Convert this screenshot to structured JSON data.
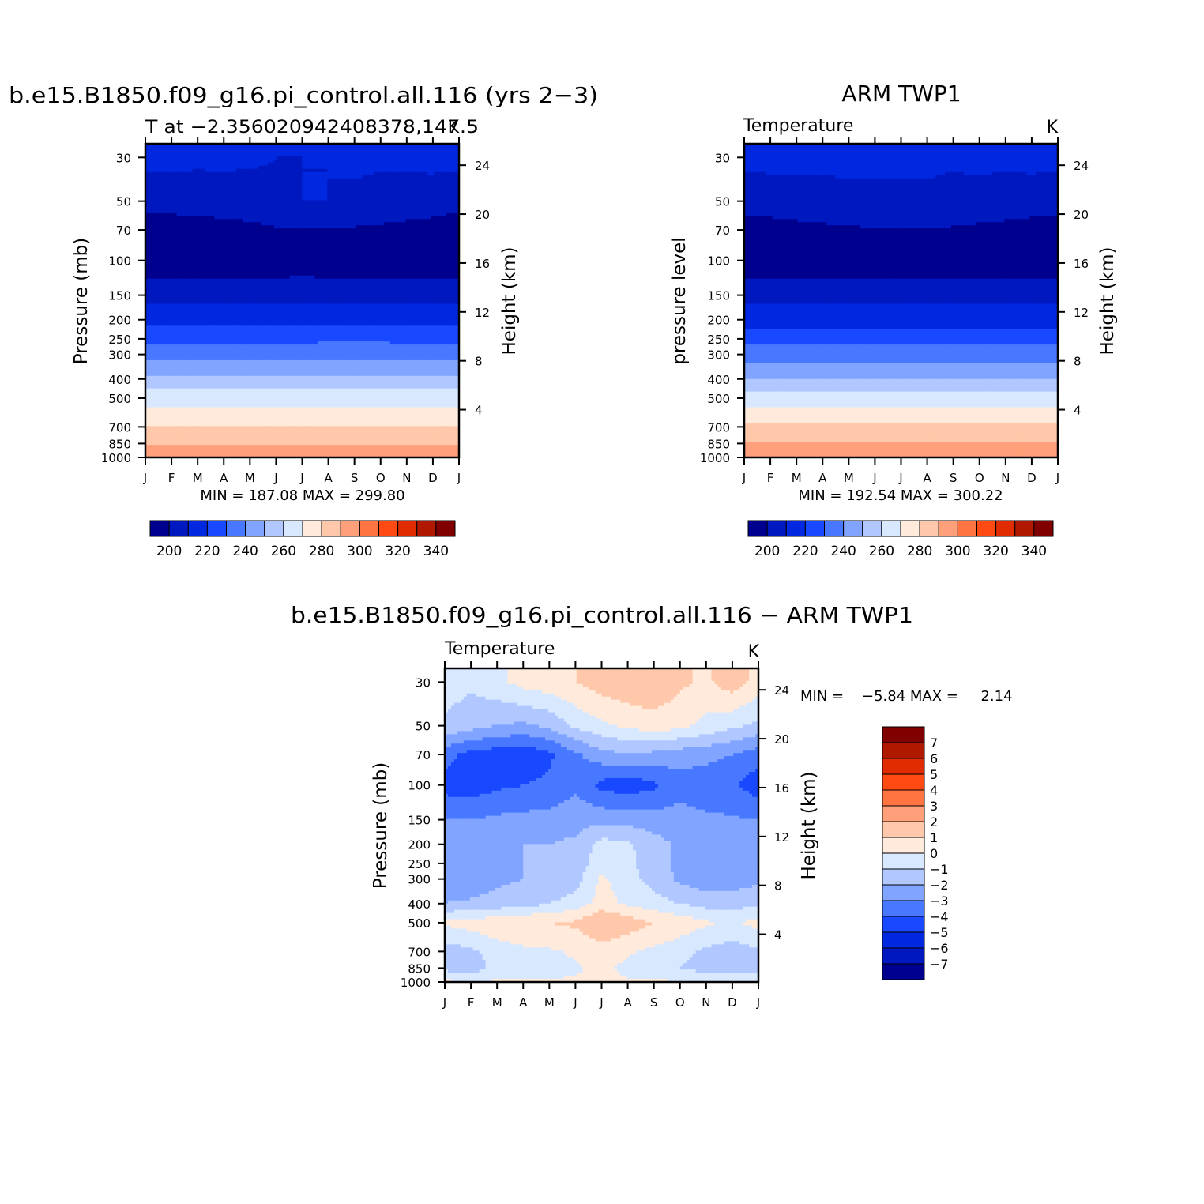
{
  "colors": {
    "temp_palette": [
      "#00008f",
      "#0018c0",
      "#0028e0",
      "#1848ff",
      "#4878ff",
      "#80a4ff",
      "#b0c8ff",
      "#d8e8ff",
      "#ffeadc",
      "#ffc8aa",
      "#ffa07a",
      "#ff7440",
      "#ff4a14",
      "#e02c00",
      "#b01800",
      "#800000"
    ],
    "diff_palette": [
      "#00008f",
      "#0018c0",
      "#0028e0",
      "#1848ff",
      "#4878ff",
      "#80a4ff",
      "#b0c8ff",
      "#d8e8ff",
      "#ffeadc",
      "#ffc8aa",
      "#ffa07a",
      "#ff7440",
      "#ff4a14",
      "#e02c00",
      "#b01800",
      "#800000"
    ]
  },
  "chart_data": [
    {
      "type": "heatmap",
      "title": "b.e15.B1850.f09_g16.pi_control.all.116 (yrs 2−3)",
      "subtitle_left": "T at −2.356020942408378,147.5",
      "subtitle_right": "K",
      "ylabel": "Pressure (mb)",
      "ylabel_right": "Height (km)",
      "x_ticks": [
        "J",
        "F",
        "M",
        "A",
        "M",
        "J",
        "J",
        "A",
        "S",
        "O",
        "N",
        "D",
        "J"
      ],
      "y_ticks": [
        "30",
        "50",
        "70",
        "100",
        "150",
        "200",
        "250",
        "300",
        "400",
        "500",
        "700",
        "850",
        "1000"
      ],
      "y_right_ticks": [
        "24",
        "20",
        "16",
        "12",
        "8",
        "4"
      ],
      "min_max": "MIN = 187.08 MAX = 299.80",
      "colorbar_labels": [
        "200",
        "220",
        "240",
        "260",
        "280",
        "300",
        "320",
        "340"
      ],
      "levels": [
        200,
        210,
        220,
        230,
        240,
        250,
        260,
        270,
        280,
        290,
        300,
        310,
        320,
        330,
        340
      ],
      "pressure_levels": [
        30,
        50,
        70,
        100,
        150,
        200,
        250,
        300,
        400,
        500,
        700,
        850,
        1000
      ],
      "values_by_level_k": [
        [
          213,
          213,
          212,
          212,
          211,
          210,
          210,
          210,
          211,
          211,
          212,
          213,
          213
        ],
        [
          203,
          204,
          205,
          206,
          207,
          209,
          210,
          210,
          209,
          208,
          206,
          205,
          203
        ],
        [
          195,
          195,
          195,
          196,
          197,
          199,
          200,
          200,
          199,
          198,
          197,
          196,
          195
        ],
        [
          193,
          193,
          193,
          193,
          193,
          193,
          194,
          193,
          193,
          193,
          193,
          193,
          193
        ],
        [
          207,
          207,
          207,
          207,
          207,
          207,
          207,
          207,
          207,
          207,
          207,
          207,
          207
        ],
        [
          217,
          217,
          217,
          217,
          217,
          217,
          217,
          217,
          217,
          217,
          217,
          217,
          217
        ],
        [
          227,
          227,
          227,
          227,
          227,
          227,
          227,
          228,
          228,
          228,
          227,
          227,
          227
        ],
        [
          236,
          236,
          236,
          236,
          236,
          236,
          236,
          237,
          237,
          237,
          236,
          236,
          236
        ],
        [
          252,
          252,
          252,
          252,
          252,
          252,
          252,
          253,
          253,
          253,
          252,
          252,
          252
        ],
        [
          266,
          266,
          266,
          266,
          266,
          266,
          266,
          266,
          266,
          266,
          266,
          266,
          266
        ],
        [
          281,
          281,
          281,
          281,
          281,
          281,
          281,
          281,
          281,
          281,
          281,
          281,
          281
        ],
        [
          289,
          289,
          289,
          289,
          289,
          289,
          289,
          289,
          289,
          289,
          289,
          289,
          289
        ],
        [
          298,
          298,
          298,
          298,
          298,
          298,
          298,
          298,
          298,
          298,
          298,
          298,
          298
        ]
      ]
    },
    {
      "type": "heatmap",
      "title": "ARM TWP1",
      "subtitle_left": "Temperature",
      "subtitle_right": "K",
      "ylabel": "pressure level",
      "ylabel_right": "Height (km)",
      "x_ticks": [
        "J",
        "F",
        "M",
        "A",
        "M",
        "J",
        "J",
        "A",
        "S",
        "O",
        "N",
        "D",
        "J"
      ],
      "y_ticks": [
        "30",
        "50",
        "70",
        "100",
        "150",
        "200",
        "250",
        "300",
        "400",
        "500",
        "700",
        "850",
        "1000"
      ],
      "y_right_ticks": [
        "24",
        "20",
        "16",
        "12",
        "8",
        "4"
      ],
      "min_max": "MIN = 192.54 MAX = 300.22",
      "colorbar_labels": [
        "200",
        "220",
        "240",
        "260",
        "280",
        "300",
        "320",
        "340"
      ],
      "levels": [
        200,
        210,
        220,
        230,
        240,
        250,
        260,
        270,
        280,
        290,
        300,
        310,
        320,
        330,
        340
      ],
      "pressure_levels": [
        30,
        50,
        70,
        100,
        150,
        200,
        250,
        300,
        400,
        500,
        700,
        850,
        1000
      ],
      "values_by_level_k": [
        [
          213,
          213,
          213,
          212,
          212,
          211,
          211,
          211,
          211,
          212,
          212,
          213,
          213
        ],
        [
          204,
          205,
          206,
          207,
          208,
          209,
          209,
          209,
          208,
          207,
          206,
          205,
          204
        ],
        [
          196,
          196,
          197,
          198,
          199,
          199,
          200,
          200,
          199,
          198,
          197,
          196,
          196
        ],
        [
          194,
          194,
          194,
          194,
          194,
          194,
          194,
          194,
          194,
          194,
          194,
          194,
          194
        ],
        [
          206,
          206,
          206,
          206,
          206,
          206,
          206,
          206,
          206,
          206,
          206,
          206,
          206
        ],
        [
          216,
          216,
          216,
          216,
          216,
          216,
          216,
          216,
          216,
          216,
          216,
          216,
          216
        ],
        [
          226,
          226,
          226,
          226,
          226,
          226,
          226,
          226,
          226,
          226,
          226,
          226,
          226
        ],
        [
          235,
          235,
          235,
          235,
          235,
          235,
          235,
          235,
          235,
          235,
          235,
          235,
          235
        ],
        [
          251,
          251,
          251,
          251,
          251,
          251,
          251,
          251,
          251,
          251,
          251,
          251,
          251
        ],
        [
          265,
          265,
          265,
          265,
          265,
          265,
          265,
          265,
          265,
          265,
          265,
          265,
          265
        ],
        [
          283,
          283,
          283,
          283,
          283,
          283,
          283,
          283,
          283,
          283,
          283,
          283,
          283
        ],
        [
          291,
          291,
          291,
          291,
          291,
          291,
          291,
          291,
          291,
          291,
          291,
          291,
          291
        ],
        [
          298,
          298,
          298,
          298,
          298,
          298,
          298,
          298,
          298,
          298,
          298,
          298,
          298
        ]
      ]
    },
    {
      "type": "heatmap",
      "title": "b.e15.B1850.f09_g16.pi_control.all.116 − ARM TWP1",
      "subtitle_left": "Temperature",
      "subtitle_right": "K",
      "ylabel": "Pressure (mb)",
      "ylabel_right": "Height (km)",
      "x_ticks": [
        "J",
        "F",
        "M",
        "A",
        "M",
        "J",
        "J",
        "A",
        "S",
        "O",
        "N",
        "D",
        "J"
      ],
      "y_ticks": [
        "30",
        "50",
        "70",
        "100",
        "150",
        "200",
        "250",
        "300",
        "400",
        "500",
        "700",
        "850",
        "1000"
      ],
      "y_right_ticks": [
        "24",
        "20",
        "16",
        "12",
        "8",
        "4"
      ],
      "min_max": "MIN =    −5.84 MAX =     2.14",
      "colorbar_labels": [
        "7",
        "6",
        "5",
        "4",
        "3",
        "2",
        "1",
        "0",
        "−1",
        "−2",
        "−3",
        "−4",
        "−5",
        "−6",
        "−7"
      ],
      "levels": [
        -7,
        -6,
        -5,
        -4,
        -3,
        -2,
        -1,
        0,
        1,
        2,
        3,
        4,
        5,
        6,
        7
      ],
      "pressure_levels": [
        30,
        50,
        70,
        100,
        150,
        200,
        250,
        300,
        400,
        500,
        700,
        850,
        1000
      ],
      "values_by_level_k": [
        [
          -0.5,
          -0.8,
          -0.3,
          0.4,
          0.6,
          1.0,
          1.5,
          1.8,
          1.9,
          1.2,
          0.8,
          1.6,
          0.6
        ],
        [
          -1.2,
          -1.6,
          -2.0,
          -2.2,
          -1.8,
          -0.8,
          -0.2,
          0.2,
          0.5,
          0.3,
          -0.3,
          -0.8,
          -1.2
        ],
        [
          -3.6,
          -4.4,
          -4.6,
          -4.8,
          -4.2,
          -3.2,
          -2.4,
          -2.1,
          -2.3,
          -2.6,
          -2.7,
          -3.0,
          -3.6
        ],
        [
          -4.4,
          -4.6,
          -4.2,
          -4.0,
          -3.8,
          -3.2,
          -4.3,
          -4.6,
          -4.2,
          -3.4,
          -3.6,
          -3.8,
          -4.6
        ],
        [
          -3.0,
          -3.0,
          -2.8,
          -2.7,
          -2.6,
          -2.4,
          -2.3,
          -2.4,
          -2.5,
          -2.6,
          -2.8,
          -2.9,
          -3.0
        ],
        [
          -2.0,
          -2.0,
          -2.0,
          -2.0,
          -2.0,
          -1.8,
          -0.6,
          -0.8,
          -1.6,
          -2.2,
          -2.6,
          -2.6,
          -2.2
        ],
        [
          -2.2,
          -2.2,
          -2.1,
          -2.0,
          -1.9,
          -1.6,
          -0.4,
          -0.8,
          -1.5,
          -2.3,
          -2.8,
          -2.7,
          -2.2
        ],
        [
          -2.4,
          -2.8,
          -2.2,
          -2.0,
          -1.8,
          -1.4,
          0.2,
          -0.6,
          -1.4,
          -2.2,
          -2.6,
          -2.6,
          -2.2
        ],
        [
          -2.0,
          -1.8,
          -1.6,
          -1.4,
          -1.0,
          -0.6,
          0.4,
          -0.2,
          -0.6,
          -1.0,
          -1.4,
          -1.4,
          -1.2
        ],
        [
          0.2,
          0.5,
          0.7,
          0.9,
          1.0,
          1.2,
          2.1,
          1.6,
          1.0,
          0.6,
          0.2,
          -0.2,
          0.4
        ],
        [
          -1.5,
          -1.2,
          -0.5,
          -0.2,
          -0.1,
          0.1,
          0.5,
          0.1,
          -0.2,
          -0.6,
          -1.2,
          -1.5,
          -1.2
        ],
        [
          -1.3,
          -1.6,
          -0.6,
          -0.4,
          -0.3,
          -0.1,
          0.2,
          -0.2,
          -0.6,
          -1.0,
          -1.5,
          -1.8,
          -1.4
        ],
        [
          0.2,
          0.1,
          0.1,
          0.1,
          0.1,
          0.1,
          0.2,
          0.1,
          0.1,
          0.1,
          0.1,
          0.1,
          0.1
        ]
      ]
    }
  ]
}
